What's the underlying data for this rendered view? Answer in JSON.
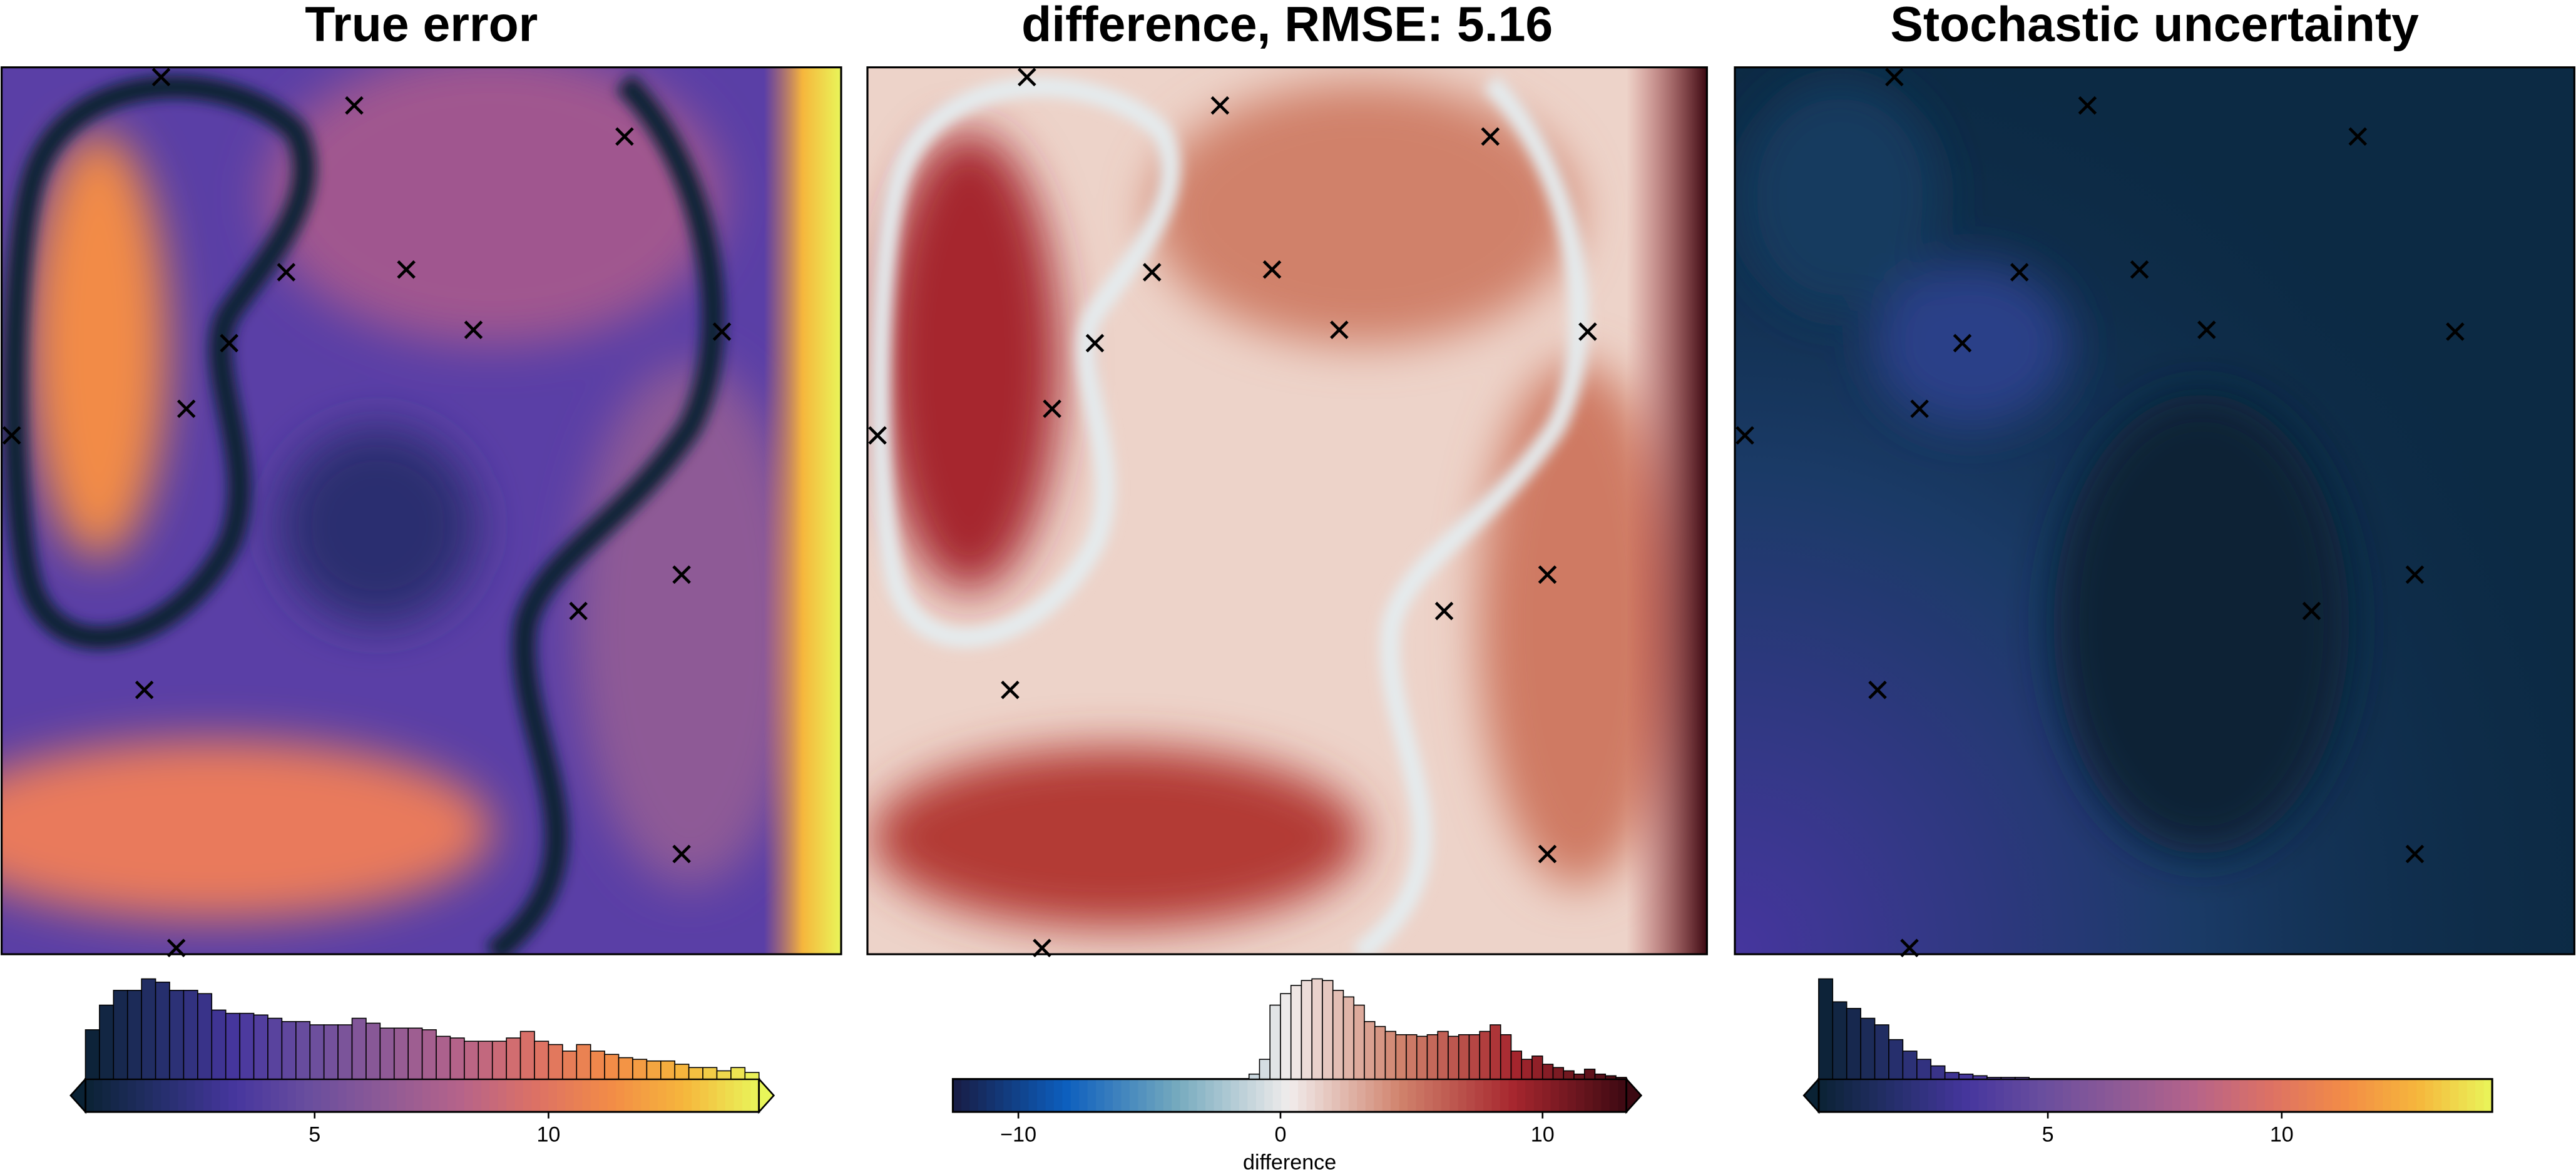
{
  "chart_data": [
    {
      "type": "image",
      "title": "True error",
      "colormap": [
        "#0a2234",
        "#252f6b",
        "#46369e",
        "#6a4e9e",
        "#8e5a96",
        "#b5638a",
        "#dc7166",
        "#f28b47",
        "#f6b63c",
        "#e9f65a"
      ],
      "extend": "both",
      "points": {
        "x": [
          0.19,
          0.42,
          0.742,
          0.339,
          0.482,
          0.562,
          0.858,
          0.271,
          0.22,
          0.012,
          0.81,
          0.687,
          0.17,
          0.81,
          0.208
        ],
        "y": [
          0.011,
          0.043,
          0.078,
          0.231,
          0.228,
          0.296,
          0.298,
          0.311,
          0.385,
          0.415,
          0.572,
          0.613,
          0.702,
          0.887,
          0.993
        ]
      },
      "xlim": [
        0.1,
        14.5
      ],
      "xticks": [
        5,
        10
      ],
      "bins": [
        0.1,
        0.4,
        0.7,
        1.0,
        1.3,
        1.6,
        1.9,
        2.2,
        2.5,
        2.8,
        3.1,
        3.4,
        3.7,
        4.0,
        4.3,
        4.6,
        4.9,
        5.2,
        5.5,
        5.8,
        6.1,
        6.4,
        6.7,
        7.0,
        7.3,
        7.6,
        7.9,
        8.2,
        8.5,
        8.8,
        9.1,
        9.4,
        9.7,
        10.0,
        10.3,
        10.6,
        10.9,
        11.2,
        11.5,
        11.8,
        12.1,
        12.4,
        12.7,
        13.0,
        13.3,
        13.6,
        13.9,
        14.2,
        14.5
      ],
      "counts": [
        30,
        45,
        54,
        54,
        61,
        59,
        54,
        54,
        52,
        42,
        40,
        40,
        39,
        37,
        35,
        35,
        33,
        33,
        33,
        37,
        34,
        31,
        31,
        31,
        30,
        26,
        25,
        23,
        23,
        23,
        25,
        29,
        23,
        21,
        17,
        21,
        17,
        15,
        13,
        12,
        11,
        11,
        9,
        7,
        7,
        5,
        7,
        4
      ]
    },
    {
      "type": "image",
      "title": "difference, RMSE: 5.16",
      "xlabel": "difference",
      "colormap": [
        "#181c43",
        "#0c5ebe",
        "#75aabe",
        "#f1ecec",
        "#d0816b",
        "#a6262e",
        "#3c0912"
      ],
      "extend": "max",
      "points": {
        "x": [
          0.19,
          0.42,
          0.742,
          0.339,
          0.482,
          0.562,
          0.858,
          0.271,
          0.22,
          0.012,
          0.81,
          0.687,
          0.17,
          0.81,
          0.208
        ],
        "y": [
          0.011,
          0.043,
          0.078,
          0.231,
          0.228,
          0.296,
          0.298,
          0.311,
          0.385,
          0.415,
          0.572,
          0.613,
          0.702,
          0.887,
          0.993
        ]
      },
      "xlim": [
        -12.5,
        13.2
      ],
      "xticks": [
        {
          "value": -10,
          "label": "−10"
        },
        0,
        10
      ],
      "bins": [
        -1.2,
        -0.8,
        -0.4,
        0,
        0.4,
        0.8,
        1.2,
        1.6,
        2,
        2.4,
        2.8,
        3.2,
        3.6,
        4,
        4.4,
        4.8,
        5.2,
        5.6,
        6,
        6.4,
        6.8,
        7.2,
        7.6,
        8,
        8.4,
        8.8,
        9.2,
        9.6,
        10,
        10.4,
        10.8,
        11.2,
        11.6,
        12,
        12.4,
        12.8,
        13.2
      ],
      "counts": [
        3,
        12,
        45,
        52,
        57,
        60,
        61,
        60,
        54,
        50,
        45,
        35,
        32,
        29,
        27,
        27,
        26,
        27,
        29,
        26,
        27,
        27,
        29,
        33,
        27,
        17,
        12,
        14,
        9,
        7,
        5,
        3,
        6,
        3,
        2,
        1
      ]
    },
    {
      "type": "image",
      "title": "Stochastic uncertainty",
      "colormap": [
        "#0a2234",
        "#252f6b",
        "#46369e",
        "#6a4e9e",
        "#8e5a96",
        "#b5638a",
        "#dc7166",
        "#f28b47",
        "#f6b63c",
        "#e9f65a"
      ],
      "extend": "min",
      "points": {
        "x": [
          0.19,
          0.42,
          0.742,
          0.339,
          0.482,
          0.562,
          0.858,
          0.271,
          0.22,
          0.012,
          0.81,
          0.687,
          0.17,
          0.81,
          0.208
        ],
        "y": [
          0.011,
          0.043,
          0.078,
          0.231,
          0.228,
          0.296,
          0.298,
          0.311,
          0.385,
          0.415,
          0.572,
          0.613,
          0.702,
          0.887,
          0.993
        ]
      },
      "xlim": [
        0.1,
        14.5
      ],
      "xticks": [
        5,
        10
      ],
      "bins": [
        0.1,
        0.4,
        0.7,
        1.0,
        1.3,
        1.6,
        1.9,
        2.2,
        2.5,
        2.8,
        3.1,
        3.4,
        3.7,
        4.0,
        4.3,
        4.6
      ],
      "counts": [
        61,
        47,
        43,
        37,
        33,
        24,
        17,
        12,
        8,
        4,
        3,
        2,
        1,
        1,
        1
      ]
    }
  ]
}
